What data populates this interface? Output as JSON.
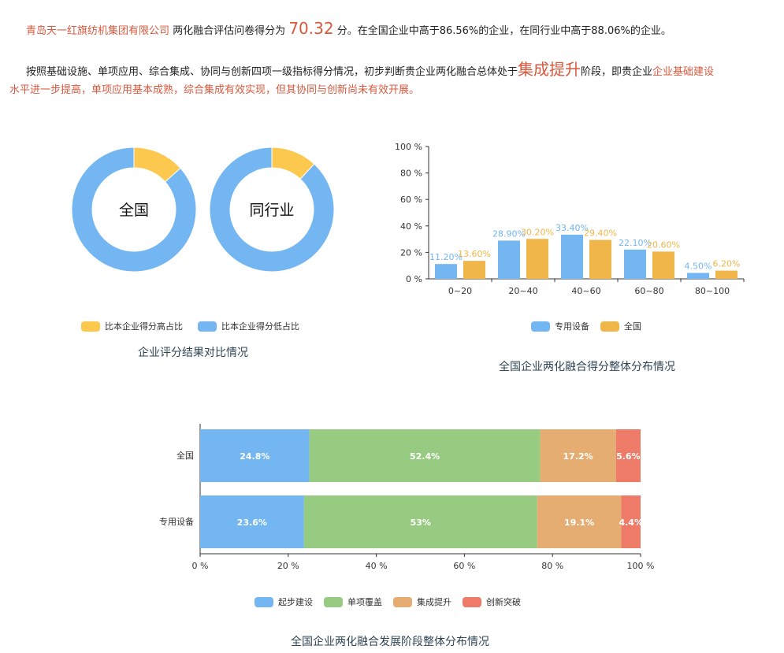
{
  "summary": {
    "company": "青岛天一红旗纺机集团有限公司",
    "text1": "两化融合评估问卷得分为",
    "score": "70.32",
    "text2": "分。在全国企业中高于86.56%的企业，在同行业中高于88.06%的企业。",
    "text3": "按照基础设施、单项应用、综合集成、协同与创新四项一级指标得分情况，初步判断贵企业两化融合总体处于",
    "stage": "集成提升",
    "text4": "阶段，即贵企业",
    "eval1": "企业基础建设",
    "eval2": "水平进一步提高，单项应用基本成熟，综合集成有效实现，但其协同与创新尚未有效开展。"
  },
  "colors": {
    "blue": "#73b6f2",
    "yellow": "#f0b64a",
    "donut_yellow": "#fcc84e",
    "green": "#98cb82",
    "orange": "#e6ad72",
    "red": "#ee7a68",
    "accent": "#d9583d"
  },
  "chart_data": [
    {
      "type": "pie",
      "variant": "donut",
      "title": "企业评分结果对比情况",
      "charts": [
        {
          "label": "全国",
          "values": [
            13.44,
            86.56
          ]
        },
        {
          "label": "同行业",
          "values": [
            11.94,
            88.06
          ]
        }
      ],
      "legend": [
        "比本企业得分高占比",
        "比本企业得分低占比"
      ],
      "legend_position": "bottom"
    },
    {
      "type": "bar",
      "title": "全国企业两化融合得分整体分布情况",
      "categories": [
        "0~20",
        "20~40",
        "40~60",
        "60~80",
        "80~100"
      ],
      "series": [
        {
          "name": "专用设备",
          "values": [
            11.2,
            28.9,
            33.4,
            22.1,
            4.5
          ],
          "labels": [
            "11.20%",
            "28.90%",
            "33.40%",
            "22.10%",
            "4.50%"
          ]
        },
        {
          "name": "全国",
          "values": [
            13.6,
            30.2,
            29.4,
            20.6,
            6.2
          ],
          "labels": [
            "13.60%",
            "30.20%",
            "29.40%",
            "20.60%",
            "6.20%"
          ]
        }
      ],
      "yticks": [
        "0 %",
        "20 %",
        "40 %",
        "60 %",
        "80 %",
        "100 %"
      ],
      "ylim": [
        0,
        100
      ],
      "legend_position": "bottom"
    },
    {
      "type": "bar",
      "variant": "stacked-horizontal",
      "title": "全国企业两化融合发展阶段整体分布情况",
      "categories": [
        "全国",
        "专用设备"
      ],
      "series": [
        {
          "name": "起步建设",
          "values": [
            24.8,
            23.6
          ],
          "labels": [
            "24.8%",
            "23.6%"
          ]
        },
        {
          "name": "单项覆盖",
          "values": [
            52.4,
            53
          ],
          "labels": [
            "52.4%",
            "53%"
          ]
        },
        {
          "name": "集成提升",
          "values": [
            17.2,
            19.1
          ],
          "labels": [
            "17.2%",
            "19.1%"
          ]
        },
        {
          "name": "创新突破",
          "values": [
            5.6,
            4.4
          ],
          "labels": [
            "5.6%",
            "4.4%"
          ]
        }
      ],
      "xticks": [
        "0 %",
        "20 %",
        "40 %",
        "60 %",
        "80 %",
        "100 %"
      ],
      "xlim": [
        0,
        100
      ],
      "legend_position": "bottom"
    }
  ]
}
